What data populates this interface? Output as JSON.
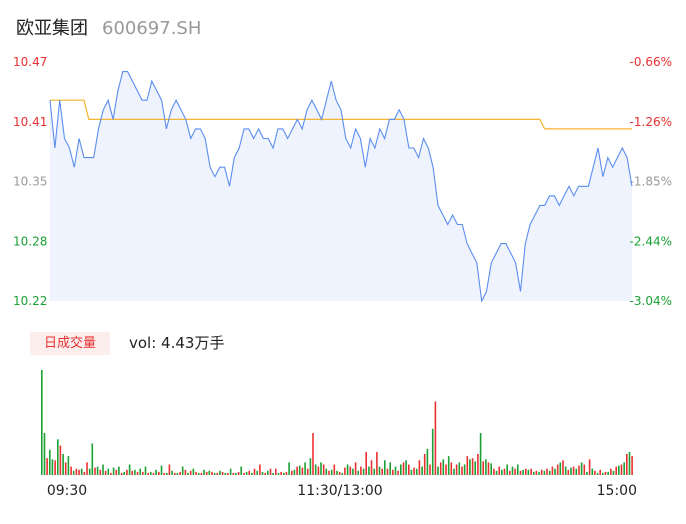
{
  "header": {
    "name": "欧亚集团",
    "code": "600697.SH"
  },
  "volume_panel": {
    "badge": "日成交量",
    "label": "vol: 4.43万手"
  },
  "colors": {
    "up": "#e93030",
    "down": "#1aa033",
    "neutral": "#999999",
    "price_line": "#5b8def",
    "avg_line": "#f5b431",
    "area": "#eef3fd"
  },
  "chart_data": [
    {
      "type": "line",
      "yticks_left": [
        "10.47",
        "10.41",
        "10.35",
        "10.28",
        "10.22"
      ],
      "yticks_right": [
        "-0.66%",
        "-1.26%",
        "-1.85%",
        "-2.44%",
        "-3.04%"
      ],
      "ytick_colors": [
        "#e93030",
        "#e93030",
        "#999999",
        "#1aa033",
        "#1aa033"
      ],
      "xticks": [
        "09:30",
        "11:30/13:00",
        "15:00"
      ],
      "ylim": [
        10.22,
        10.47
      ],
      "x": [
        0,
        2,
        4,
        6,
        8,
        10,
        12,
        14,
        16,
        18,
        20,
        22,
        24,
        26,
        28,
        30,
        32,
        34,
        36,
        38,
        40,
        42,
        44,
        46,
        48,
        50,
        52,
        54,
        56,
        58,
        60,
        62,
        64,
        66,
        68,
        70,
        72,
        74,
        76,
        78,
        80,
        82,
        84,
        86,
        88,
        90,
        92,
        94,
        96,
        98,
        100,
        102,
        104,
        106,
        108,
        110,
        112,
        114,
        116,
        118,
        120,
        122,
        124,
        126,
        128,
        130,
        132,
        134,
        136,
        138,
        140,
        142,
        144,
        146,
        148,
        150,
        152,
        154,
        156,
        158,
        160,
        162,
        164,
        166,
        168,
        170,
        172,
        174,
        176,
        178,
        180,
        182,
        184,
        186,
        188,
        190,
        192,
        194,
        196,
        198,
        200,
        202,
        204,
        206,
        208,
        210,
        212,
        214,
        216,
        218,
        220,
        222,
        224,
        226,
        228,
        230,
        232,
        234,
        236,
        238,
        240
      ],
      "series": [
        {
          "values": [
            10.43,
            10.38,
            10.43,
            10.39,
            10.38,
            10.36,
            10.39,
            10.37,
            10.37,
            10.37,
            10.4,
            10.42,
            10.43,
            10.41,
            10.44,
            10.46,
            10.46,
            10.45,
            10.44,
            10.43,
            10.43,
            10.45,
            10.44,
            10.43,
            10.4,
            10.42,
            10.43,
            10.42,
            10.41,
            10.39,
            10.4,
            10.4,
            10.39,
            10.36,
            10.35,
            10.36,
            10.36,
            10.34,
            10.37,
            10.38,
            10.4,
            10.4,
            10.39,
            10.4,
            10.39,
            10.39,
            10.38,
            10.4,
            10.4,
            10.39,
            10.4,
            10.41,
            10.4,
            10.42,
            10.43,
            10.42,
            10.41,
            10.43,
            10.45,
            10.43,
            10.42,
            10.39,
            10.38,
            10.4,
            10.39,
            10.36,
            10.39,
            10.38,
            10.4,
            10.39,
            10.41,
            10.41,
            10.42,
            10.41,
            10.38,
            10.38,
            10.37,
            10.39,
            10.38,
            10.36,
            10.32,
            10.31,
            10.3,
            10.31,
            10.3,
            10.3,
            10.28,
            10.27,
            10.26,
            10.22,
            10.23,
            10.26,
            10.27,
            10.28,
            10.28,
            10.27,
            10.26,
            10.23,
            10.28,
            10.3,
            10.31,
            10.32,
            10.32,
            10.33,
            10.33,
            10.32,
            10.33,
            10.34,
            10.33,
            10.34,
            10.34,
            10.34,
            10.36,
            10.38,
            10.35,
            10.37,
            10.36,
            10.37,
            10.38,
            10.37,
            10.34
          ]
        },
        {
          "values": [
            10.43,
            10.43,
            10.43,
            10.43,
            10.43,
            10.43,
            10.43,
            10.43,
            10.41,
            10.41,
            10.41,
            10.41,
            10.41,
            10.41,
            10.41,
            10.41,
            10.41,
            10.41,
            10.41,
            10.41,
            10.41,
            10.41,
            10.41,
            10.41,
            10.41,
            10.41,
            10.41,
            10.41,
            10.41,
            10.41,
            10.41,
            10.41,
            10.41,
            10.41,
            10.41,
            10.41,
            10.41,
            10.41,
            10.41,
            10.41,
            10.41,
            10.41,
            10.41,
            10.41,
            10.41,
            10.41,
            10.41,
            10.41,
            10.41,
            10.41,
            10.41,
            10.41,
            10.41,
            10.41,
            10.41,
            10.41,
            10.41,
            10.41,
            10.41,
            10.41,
            10.41,
            10.41,
            10.41,
            10.41,
            10.41,
            10.41,
            10.41,
            10.41,
            10.41,
            10.41,
            10.41,
            10.41,
            10.41,
            10.41,
            10.41,
            10.41,
            10.41,
            10.41,
            10.41,
            10.41,
            10.41,
            10.41,
            10.41,
            10.41,
            10.41,
            10.41,
            10.41,
            10.41,
            10.41,
            10.41,
            10.41,
            10.41,
            10.41,
            10.41,
            10.41,
            10.41,
            10.41,
            10.41,
            10.41,
            10.41,
            10.41,
            10.41,
            10.4,
            10.4,
            10.4,
            10.4,
            10.4,
            10.4,
            10.4,
            10.4,
            10.4,
            10.4,
            10.4,
            10.4,
            10.4,
            10.4,
            10.4,
            10.4,
            10.4,
            10.4,
            10.4
          ]
        }
      ]
    },
    {
      "type": "bar",
      "volumes": [
        100,
        40,
        16,
        24,
        15,
        14,
        34,
        28,
        20,
        12,
        18,
        8,
        4,
        6,
        5,
        6,
        3,
        12,
        6,
        30,
        7,
        8,
        5,
        10,
        4,
        6,
        2,
        7,
        5,
        8,
        2,
        3,
        5,
        10,
        4,
        5,
        3,
        6,
        3,
        8,
        2,
        3,
        2,
        5,
        3,
        9,
        2,
        2,
        10,
        4,
        2,
        2,
        3,
        8,
        5,
        2,
        4,
        6,
        3,
        2,
        2,
        5,
        3,
        4,
        3,
        2,
        2,
        4,
        3,
        2,
        2,
        6,
        2,
        2,
        3,
        8,
        2,
        3,
        4,
        2,
        6,
        4,
        10,
        3,
        2,
        4,
        6,
        2,
        6,
        2,
        3,
        2,
        3,
        12,
        4,
        5,
        8,
        9,
        7,
        12,
        6,
        16,
        40,
        10,
        8,
        12,
        10,
        6,
        4,
        5,
        10,
        4,
        3,
        2,
        7,
        10,
        8,
        6,
        12,
        4,
        8,
        6,
        22,
        8,
        14,
        6,
        22,
        8,
        6,
        14,
        6,
        12,
        5,
        8,
        4,
        10,
        12,
        14,
        10,
        5,
        7,
        6,
        14,
        8,
        20,
        25,
        10,
        44,
        70,
        8,
        12,
        15,
        10,
        18,
        12,
        6,
        10,
        12,
        8,
        10,
        18,
        15,
        16,
        13,
        20,
        40,
        13,
        15,
        12,
        11,
        6,
        4,
        8,
        5,
        6,
        10,
        4,
        8,
        6,
        10,
        4,
        5,
        6,
        5,
        6,
        3,
        4,
        3,
        5,
        4,
        6,
        4,
        8,
        6,
        10,
        12,
        14,
        8,
        5,
        7,
        8,
        6,
        9,
        12,
        10,
        3,
        15,
        6,
        4,
        2,
        5,
        2,
        3,
        3,
        6,
        4,
        8,
        9,
        10,
        12,
        20,
        22,
        18
      ],
      "colors": [
        "d",
        "d",
        "u",
        "d",
        "d",
        "u",
        "d",
        "u",
        "d",
        "u",
        "d",
        "u",
        "d",
        "u",
        "u",
        "d",
        "u",
        "u",
        "d",
        "d",
        "u",
        "d",
        "u",
        "d",
        "u",
        "d",
        "u",
        "d",
        "u",
        "d",
        "u",
        "d",
        "u",
        "d",
        "u",
        "d",
        "u",
        "d",
        "u",
        "d",
        "u",
        "d",
        "u",
        "d",
        "u",
        "d",
        "u",
        "d",
        "u",
        "d",
        "u",
        "d",
        "u",
        "d",
        "u",
        "d",
        "u",
        "d",
        "u",
        "d",
        "u",
        "d",
        "u",
        "d",
        "u",
        "d",
        "u",
        "d",
        "u",
        "d",
        "u",
        "d",
        "u",
        "d",
        "u",
        "d",
        "u",
        "d",
        "u",
        "d",
        "u",
        "d",
        "u",
        "d",
        "u",
        "d",
        "u",
        "d",
        "u",
        "d",
        "u",
        "d",
        "u",
        "d",
        "u",
        "d",
        "u",
        "d",
        "u",
        "d",
        "u",
        "d",
        "u",
        "d",
        "u",
        "d",
        "u",
        "d",
        "u",
        "d",
        "u",
        "d",
        "u",
        "d",
        "u",
        "d",
        "u",
        "d",
        "u",
        "d",
        "u",
        "d",
        "u",
        "d",
        "u",
        "d",
        "u",
        "d",
        "u",
        "d",
        "u",
        "d",
        "u",
        "d",
        "u",
        "d",
        "u",
        "d",
        "u",
        "d",
        "u",
        "d",
        "u",
        "d",
        "u",
        "d",
        "u",
        "d",
        "u",
        "d",
        "u",
        "d",
        "u",
        "d",
        "u",
        "d",
        "u",
        "d",
        "u",
        "d",
        "u",
        "d",
        "u",
        "d",
        "u",
        "d",
        "u",
        "d",
        "u",
        "d",
        "u",
        "d",
        "u",
        "d",
        "u",
        "d",
        "u",
        "d",
        "u",
        "d",
        "u",
        "d",
        "u",
        "d",
        "u",
        "d",
        "u",
        "d",
        "u",
        "d",
        "u",
        "d",
        "u",
        "d",
        "u",
        "d",
        "u",
        "d",
        "u",
        "d",
        "u",
        "d",
        "u",
        "d",
        "u",
        "d",
        "u",
        "d",
        "u",
        "d",
        "u",
        "d",
        "u",
        "d",
        "u",
        "d",
        "u",
        "d",
        "u",
        "d",
        "u",
        "d",
        "u",
        "d"
      ]
    }
  ]
}
